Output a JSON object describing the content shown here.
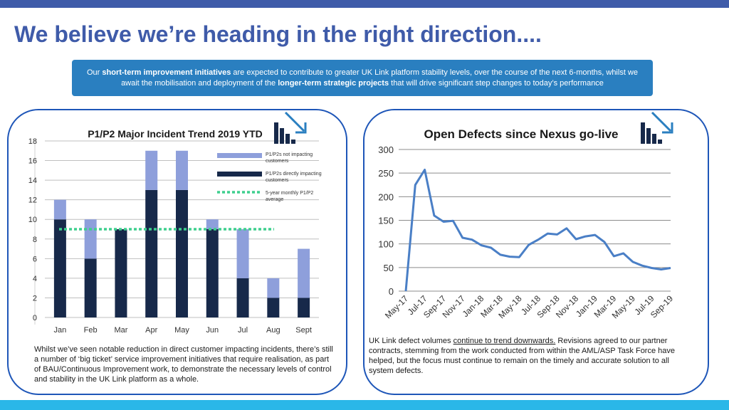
{
  "title": "We believe we’re heading in the right direction....",
  "intro": {
    "p1": "Our ",
    "b1": "short-term improvement initiatives",
    "p2": " are expected to contribute to greater UK Link platform stability levels, over the course of the next 6-months, whilst we await the mobilisation and deployment of the ",
    "b2": "longer-term strategic projects",
    "p3": " that will drive significant step changes to today’s performance"
  },
  "captions": {
    "left": "Whilst we’ve seen notable reduction in direct customer impacting incidents, there’s still a number of ‘big ticket’ service improvement initiatives that require realisation, as part of BAU/Continuous Improvement work, to demonstrate the necessary levels of control and stability in the UK Link platform as a whole.",
    "right_pre": "UK Link defect volumes ",
    "right_underline": "continue to trend downwards.",
    "right_post": " Revisions agreed to our partner contracts, stemming from the work conducted from within the AML/ASP Task Force have helped, but the focus must continue to remain on the timely and accurate solution to all system defects."
  },
  "colors": {
    "title": "#3f5ba9",
    "banner": "#2a7fc0",
    "panel_border": "#1e56b8",
    "bar_direct": "#17294a",
    "bar_not": "#8e9fdb",
    "average_line": "#3ecf8e",
    "defects_line": "#4a7fc6"
  },
  "chart_data": [
    {
      "type": "bar",
      "stacked": true,
      "title": "P1/P2 Major Incident Trend 2019 YTD",
      "categories": [
        "Jan",
        "Feb",
        "Mar",
        "Apr",
        "May",
        "Jun",
        "Jul",
        "Aug",
        "Sept"
      ],
      "series": [
        {
          "name": "P1/P2s directly impacting customers",
          "values": [
            10,
            6,
            9,
            13,
            13,
            9,
            4,
            2,
            2
          ]
        },
        {
          "name": "P1/P2s not impacting customers",
          "values": [
            2,
            4,
            0,
            4,
            4,
            1,
            5,
            2,
            5
          ]
        }
      ],
      "reference_line": {
        "name": "5-year monthly P1/P2 average",
        "value": 9
      },
      "ylim": [
        0,
        18
      ],
      "yticks": [
        0,
        2,
        4,
        6,
        8,
        10,
        12,
        14,
        16,
        18
      ],
      "grid": true,
      "legend": "top-right",
      "icon": "bar-trend-icon"
    },
    {
      "type": "line",
      "title": "Open Defects since Nexus go-live",
      "x": [
        "May-17",
        "Jun-17",
        "Jul-17",
        "Aug-17",
        "Sep-17",
        "Oct-17",
        "Nov-17",
        "Dec-17",
        "Jan-18",
        "Feb-18",
        "Mar-18",
        "Apr-18",
        "May-18",
        "Jun-18",
        "Jul-18",
        "Aug-18",
        "Sep-18",
        "Oct-18",
        "Nov-18",
        "Dec-18",
        "Jan-19",
        "Feb-19",
        "Mar-19",
        "Apr-19",
        "May-19",
        "Jun-19",
        "Jul-19",
        "Aug-19",
        "Sep-19"
      ],
      "xtick_labels": [
        "May-17",
        "Jul-17",
        "Sep-17",
        "Nov-17",
        "Jan-18",
        "Mar-18",
        "May-18",
        "Jul-18",
        "Sep-18",
        "Nov-18",
        "Jan-19",
        "Mar-19",
        "May-19",
        "Jul-19",
        "Sep-19"
      ],
      "series": [
        {
          "values": [
            0,
            225,
            257,
            160,
            147,
            149,
            113,
            109,
            97,
            92,
            77,
            73,
            72,
            98,
            109,
            122,
            120,
            133,
            110,
            116,
            119,
            104,
            74,
            80,
            62,
            54,
            49,
            46,
            49
          ]
        }
      ],
      "ylim": [
        0,
        300
      ],
      "yticks": [
        0,
        50,
        100,
        150,
        200,
        250,
        300
      ],
      "grid": true,
      "icon": "bar-trend-icon"
    }
  ]
}
